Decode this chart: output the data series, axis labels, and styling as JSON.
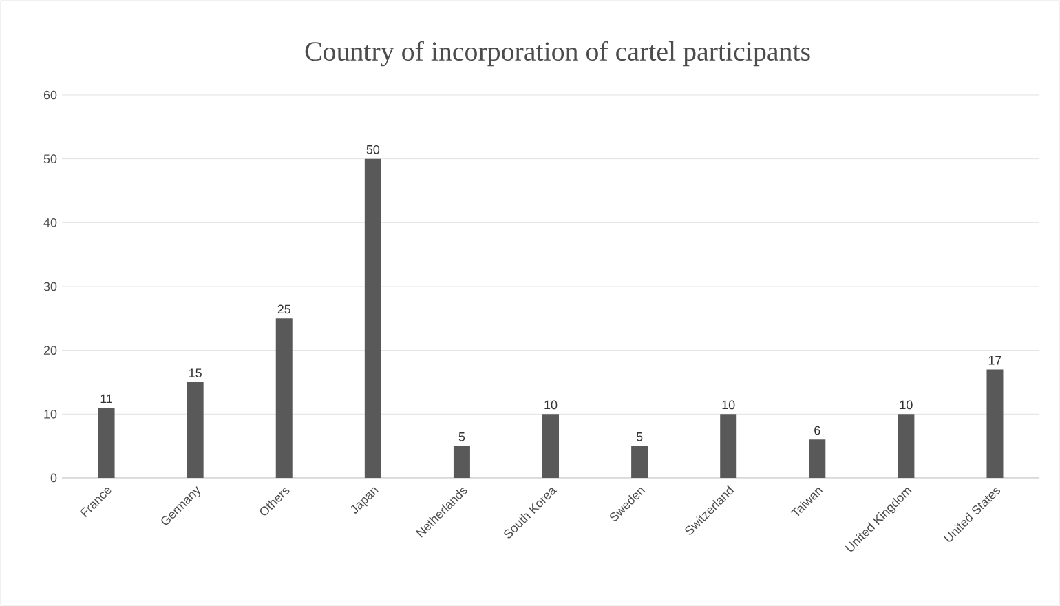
{
  "chart_data": {
    "type": "bar",
    "title": "Country of incorporation of cartel participants",
    "categories": [
      "France",
      "Germany",
      "Others",
      "Japan",
      "Netherlands",
      "South Korea",
      "Sweden",
      "Switzerland",
      "Taiwan",
      "United Kingdom",
      "United States"
    ],
    "values": [
      11,
      15,
      25,
      50,
      5,
      10,
      5,
      10,
      6,
      10,
      17
    ],
    "color": "#595959",
    "ylim": [
      0,
      60
    ],
    "yticks": [
      0,
      10,
      20,
      30,
      40,
      50,
      60
    ],
    "grid": "y",
    "data_labels": true
  }
}
